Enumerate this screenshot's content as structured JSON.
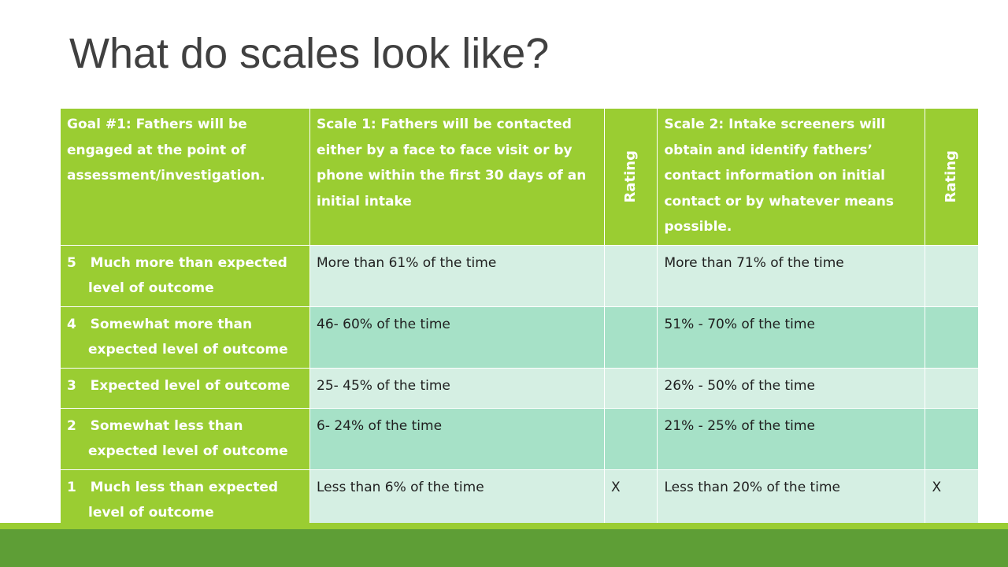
{
  "title": "What do scales look like?",
  "header": {
    "goal": "Goal #1:  Fathers will be engaged at the point of assessment/investigation.",
    "scale1": "Scale 1: Fathers will be contacted either by a face to face visit or by phone within the first 30 days of an initial intake",
    "rating1": "Rating",
    "scale2": "Scale 2: Intake screeners will obtain and identify fathers’ contact information on initial contact or by whatever means possible.",
    "rating2": "Rating"
  },
  "rows": [
    {
      "num": "5",
      "level_head": "Much more than expected",
      "level_tail": "level of outcome",
      "scale1": "More than 61% of the time",
      "rating1": "",
      "scale2": "More than 71% of the time",
      "rating2": ""
    },
    {
      "num": "4",
      "level_head": "Somewhat more than",
      "level_tail": "expected level of outcome",
      "scale1": "46- 60% of the time",
      "rating1": "",
      "scale2": "51% - 70% of the time",
      "rating2": ""
    },
    {
      "num": "3",
      "level_head": "Expected level of outcome",
      "level_tail": "",
      "scale1": "25- 45% of the time",
      "rating1": "",
      "scale2": "26% - 50% of the time",
      "rating2": ""
    },
    {
      "num": "2",
      "level_head": "Somewhat less than",
      "level_tail": "expected level of outcome",
      "scale1": "6- 24% of the time",
      "rating1": "",
      "scale2": "21% - 25% of the time",
      "rating2": ""
    },
    {
      "num": "1",
      "level_head": "Much less than expected",
      "level_tail": "level of outcome",
      "scale1": "Less than 6% of the time",
      "rating1": "X",
      "scale2": "Less than 20% of the time",
      "rating2": "X"
    }
  ]
}
